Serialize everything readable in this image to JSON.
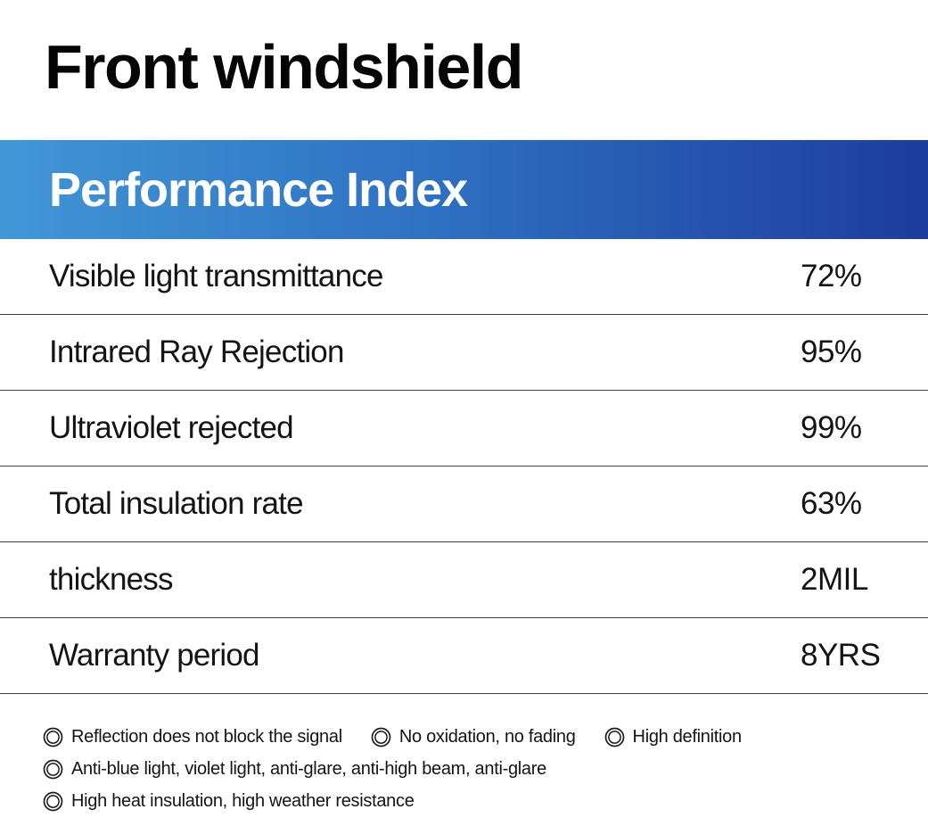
{
  "page": {
    "title": "Front windshield"
  },
  "band": {
    "title": "Performance Index",
    "gradient_start": "#4296d6",
    "gradient_end": "#1e3c9d"
  },
  "table": {
    "rows": [
      {
        "label": "Visible light transmittance",
        "value": "72%"
      },
      {
        "label": "Intrared Ray Rejection",
        "value": "95%"
      },
      {
        "label": "Ultraviolet rejected",
        "value": "99%"
      },
      {
        "label": "Total insulation rate",
        "value": "63%"
      },
      {
        "label": "thickness",
        "value": "2MIL"
      },
      {
        "label": "Warranty period",
        "value": "8YRS"
      }
    ]
  },
  "features": {
    "icon": "double-ring-icon",
    "lines": [
      [
        "Reflection does not block the signal",
        "No oxidation, no fading",
        "High definition"
      ],
      [
        "Anti-blue light, violet light, anti-glare, anti-high beam, anti-glare"
      ],
      [
        "High heat insulation, high weather resistance"
      ]
    ]
  },
  "colors": {
    "divider": "#3d3d3d",
    "text": "#141414",
    "band_text": "#ffffff"
  }
}
